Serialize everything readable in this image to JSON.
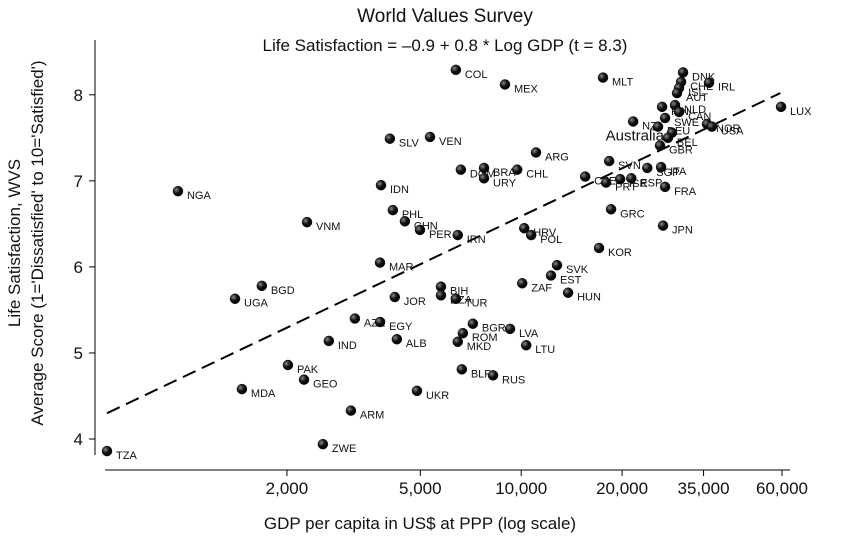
{
  "chart_data": {
    "type": "scatter",
    "title": "World Values Survey",
    "subtitle": "Life Satisfaction = –0.9 + 0.8 * Log GDP (t = 8.3)",
    "xlabel": "GDP per capita in US$ at PPP (log scale)",
    "ylabel": [
      "Life Satisfaction, WVS",
      "Average Score (1='Dissatisfied' to 10='Satisfied')"
    ],
    "xscale": "log",
    "xlim": [
      535,
      65600
    ],
    "ylim": [
      3.64,
      8.66
    ],
    "xticks": [
      {
        "value": 2000,
        "label": "2,000"
      },
      {
        "value": 5000,
        "label": "5,000"
      },
      {
        "value": 10000,
        "label": "10,000"
      },
      {
        "value": 20000,
        "label": "20,000"
      },
      {
        "value": 35000,
        "label": "35,000"
      },
      {
        "value": 60000,
        "label": "60,000"
      }
    ],
    "yticks": [
      4,
      5,
      6,
      7,
      8
    ],
    "color": "#111111",
    "points": {
      "labels": [
        "TZA",
        "NGA",
        "UGA",
        "BGD",
        "MDA",
        "PAK",
        "GEO",
        "VNM",
        "ZWE",
        "ARM",
        "AZE",
        "IND",
        "MAR",
        "SLV",
        "VEN",
        "PHL",
        "CHN",
        "PER",
        "IDN",
        "JOR",
        "EGY",
        "ALB",
        "COL",
        "MEX",
        "DOM",
        "BRA",
        "URY",
        "IRN",
        "BIH",
        "DZA",
        "TUR",
        "BGR",
        "ROM",
        "MKD",
        "BLR",
        "UKR",
        "RUS",
        "LVA",
        "LTU",
        "ZAF",
        "HRV",
        "POL",
        "CHL",
        "ARG",
        "SVK",
        "EST",
        "HUN",
        "CZE",
        "SVN",
        "PRT",
        "GRC",
        "KOR",
        "ISR",
        "ESP",
        "SGP",
        "ITA",
        "FRA",
        "JPN",
        "MLT",
        "NZL",
        "FIN",
        "DNK",
        "CHE",
        "ISL",
        "AUT",
        "IRL",
        "NLD",
        "CAN",
        "SWE",
        "DEU",
        "Australia",
        "BEL",
        "GBR",
        "NOR",
        "USA",
        "LUX"
      ],
      "x": [
        581,
        946,
        1400,
        1683,
        1468,
        2014,
        2249,
        2296,
        2560,
        3104,
        3190,
        2667,
        3790,
        4057,
        5345,
        4140,
        4498,
        4988,
        3817,
        4196,
        3793,
        4256,
        6383,
        8944,
        6607,
        7745,
        7745,
        6467,
        5763,
        5763,
        6383,
        7174,
        6697,
        6467,
        6650,
        4887,
        8240,
        9263,
        10350,
        10070,
        10210,
        10710,
        9730,
        11070,
        12790,
        12270,
        13800,
        15520,
        18300,
        17920,
        18540,
        17070,
        19730,
        21300,
        23780,
        26140,
        26870,
        26500,
        17540,
        21580,
        26320,
        30400,
        29990,
        29580,
        29170,
        36340,
        28770,
        29580,
        26870,
        25600,
        28170,
        27400,
        25950,
        35840,
        37060,
        59600
      ],
      "y": [
        3.86,
        6.88,
        5.63,
        5.78,
        4.58,
        4.86,
        4.69,
        6.52,
        3.94,
        4.33,
        5.4,
        5.14,
        6.05,
        7.49,
        7.51,
        6.66,
        6.53,
        6.43,
        6.95,
        5.65,
        5.36,
        5.16,
        8.29,
        8.12,
        7.13,
        7.15,
        7.03,
        6.37,
        5.77,
        5.67,
        5.63,
        5.34,
        5.23,
        5.13,
        4.81,
        4.56,
        4.74,
        5.28,
        5.09,
        5.81,
        6.45,
        6.37,
        7.13,
        7.33,
        6.02,
        5.9,
        5.7,
        7.05,
        7.23,
        6.98,
        6.67,
        6.22,
        7.02,
        7.03,
        7.15,
        7.16,
        6.93,
        6.48,
        8.2,
        7.69,
        7.86,
        8.26,
        8.15,
        8.08,
        8.02,
        8.14,
        7.88,
        7.8,
        7.73,
        7.63,
        7.56,
        7.5,
        7.41,
        7.66,
        7.63,
        7.86
      ]
    },
    "fit_line": {
      "x": [
        581,
        59300
      ],
      "y": [
        4.3,
        8.02
      ]
    }
  }
}
